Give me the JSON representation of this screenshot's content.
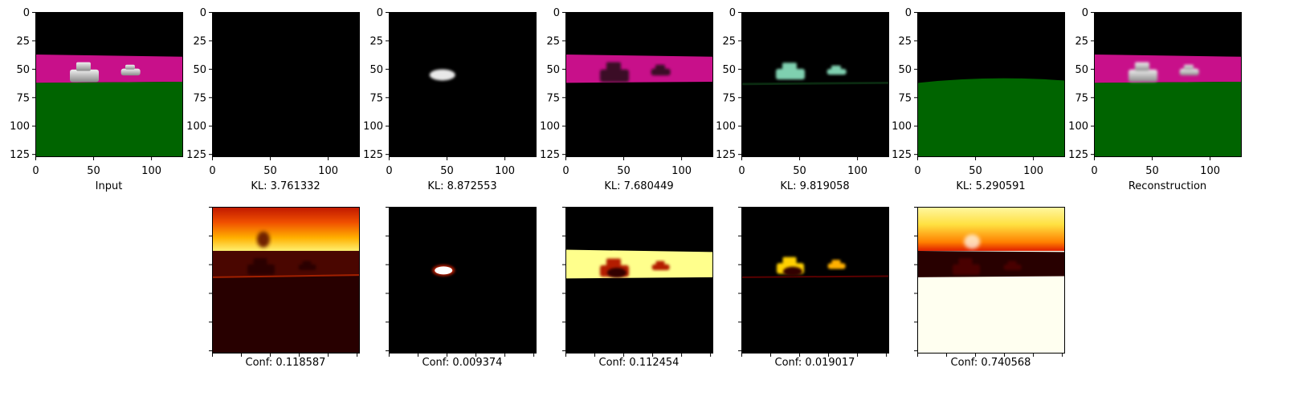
{
  "chart_data": {
    "type": "image-grid",
    "image_extent": [
      0,
      127
    ],
    "top_row": {
      "xticks": [
        0,
        50,
        100
      ],
      "yticks": [
        0,
        25,
        50,
        75,
        100,
        125
      ],
      "panels": [
        {
          "label": "Input",
          "content": "full-scene"
        },
        {
          "label": "KL: 3.761332",
          "content": "empty"
        },
        {
          "label": "KL: 8.872553",
          "content": "small-car"
        },
        {
          "label": "KL: 7.680449",
          "content": "road-band"
        },
        {
          "label": "KL: 9.819058",
          "content": "cars"
        },
        {
          "label": "KL: 5.290591",
          "content": "ground"
        },
        {
          "label": "Reconstruction",
          "content": "full-scene-blur"
        }
      ]
    },
    "bottom_row": {
      "colormap": "hot",
      "panels": [
        {
          "label": "Conf: 0.118587",
          "column": 1,
          "content": "mask-sky"
        },
        {
          "label": "Conf: 0.009374",
          "column": 2,
          "content": "mask-small-car"
        },
        {
          "label": "Conf: 0.112454",
          "column": 3,
          "content": "mask-road"
        },
        {
          "label": "Conf: 0.019017",
          "column": 4,
          "content": "mask-cars"
        },
        {
          "label": "Conf: 0.740568",
          "column": 5,
          "content": "mask-ground"
        }
      ]
    }
  },
  "colors": {
    "sky": "#000000",
    "road": "#c8108a",
    "ground": "#006400",
    "car": "#d8d8d8",
    "teal_car": "#7fd0b0",
    "hot_dark": "#280000",
    "hot_red": "#b41e00",
    "hot_orange": "#f06400",
    "hot_yellow": "#ffff8c",
    "hot_white": "#fffff0"
  }
}
